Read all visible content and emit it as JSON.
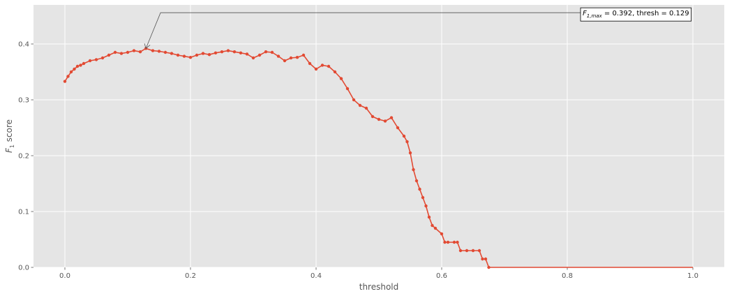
{
  "chart_data": {
    "type": "line",
    "xlabel": "threshold",
    "ylabel": "F",
    "ylabel_sub": "1",
    "ylabel_suffix": " score",
    "xlim": [
      -0.05,
      1.05
    ],
    "ylim": [
      0,
      0.47
    ],
    "xticks": [
      0.0,
      0.2,
      0.4,
      0.6,
      0.8,
      1.0
    ],
    "xtick_labels": [
      "0.0",
      "0.2",
      "0.4",
      "0.6",
      "0.8",
      "1.0"
    ],
    "yticks": [
      0.0,
      0.1,
      0.2,
      0.3,
      0.4
    ],
    "ytick_labels": [
      "0.0",
      "0.1",
      "0.2",
      "0.3",
      "0.4"
    ],
    "grid": true,
    "style": "ggplot",
    "line_color": "#E24A33",
    "background": "#E5E5E5",
    "series": [
      {
        "x": [
          0.0,
          0.005,
          0.01,
          0.015,
          0.02,
          0.025,
          0.03,
          0.04,
          0.05,
          0.06,
          0.07,
          0.08,
          0.09,
          0.1,
          0.11,
          0.12,
          0.129,
          0.14,
          0.15,
          0.16,
          0.17,
          0.18,
          0.19,
          0.2,
          0.21,
          0.22,
          0.23,
          0.24,
          0.25,
          0.26,
          0.27,
          0.28,
          0.29,
          0.3,
          0.31,
          0.32,
          0.33,
          0.34,
          0.35,
          0.36,
          0.37,
          0.38,
          0.39,
          0.4,
          0.41,
          0.42,
          0.43,
          0.44,
          0.45,
          0.46,
          0.47,
          0.48,
          0.49,
          0.5,
          0.51,
          0.52,
          0.53,
          0.54,
          0.545,
          0.55,
          0.555,
          0.56,
          0.565,
          0.57,
          0.575,
          0.58,
          0.585,
          0.59,
          0.6,
          0.605,
          0.61,
          0.62,
          0.625,
          0.63,
          0.64,
          0.65,
          0.66,
          0.665,
          0.67,
          0.675,
          0.7,
          0.8,
          0.9,
          1.0
        ],
        "y": [
          0.333,
          0.342,
          0.35,
          0.355,
          0.36,
          0.362,
          0.365,
          0.37,
          0.372,
          0.375,
          0.38,
          0.385,
          0.383,
          0.385,
          0.388,
          0.386,
          0.392,
          0.388,
          0.387,
          0.385,
          0.383,
          0.38,
          0.378,
          0.376,
          0.38,
          0.383,
          0.381,
          0.384,
          0.386,
          0.388,
          0.386,
          0.384,
          0.382,
          0.375,
          0.38,
          0.386,
          0.385,
          0.378,
          0.37,
          0.375,
          0.376,
          0.38,
          0.365,
          0.355,
          0.362,
          0.36,
          0.35,
          0.338,
          0.32,
          0.3,
          0.29,
          0.285,
          0.27,
          0.265,
          0.262,
          0.268,
          0.25,
          0.235,
          0.225,
          0.205,
          0.175,
          0.155,
          0.14,
          0.125,
          0.11,
          0.09,
          0.075,
          0.07,
          0.06,
          0.045,
          0.045,
          0.045,
          0.045,
          0.03,
          0.03,
          0.03,
          0.03,
          0.015,
          0.015,
          0.0,
          0.0,
          0.0,
          0.0,
          0.0
        ]
      }
    ],
    "annotation": {
      "prefix": "F",
      "subscript": "1,max",
      "text": " = 0.392, thresh = 0.129",
      "point": [
        0.129,
        0.392
      ],
      "text_position": [
        0.82,
        0.441
      ]
    }
  }
}
